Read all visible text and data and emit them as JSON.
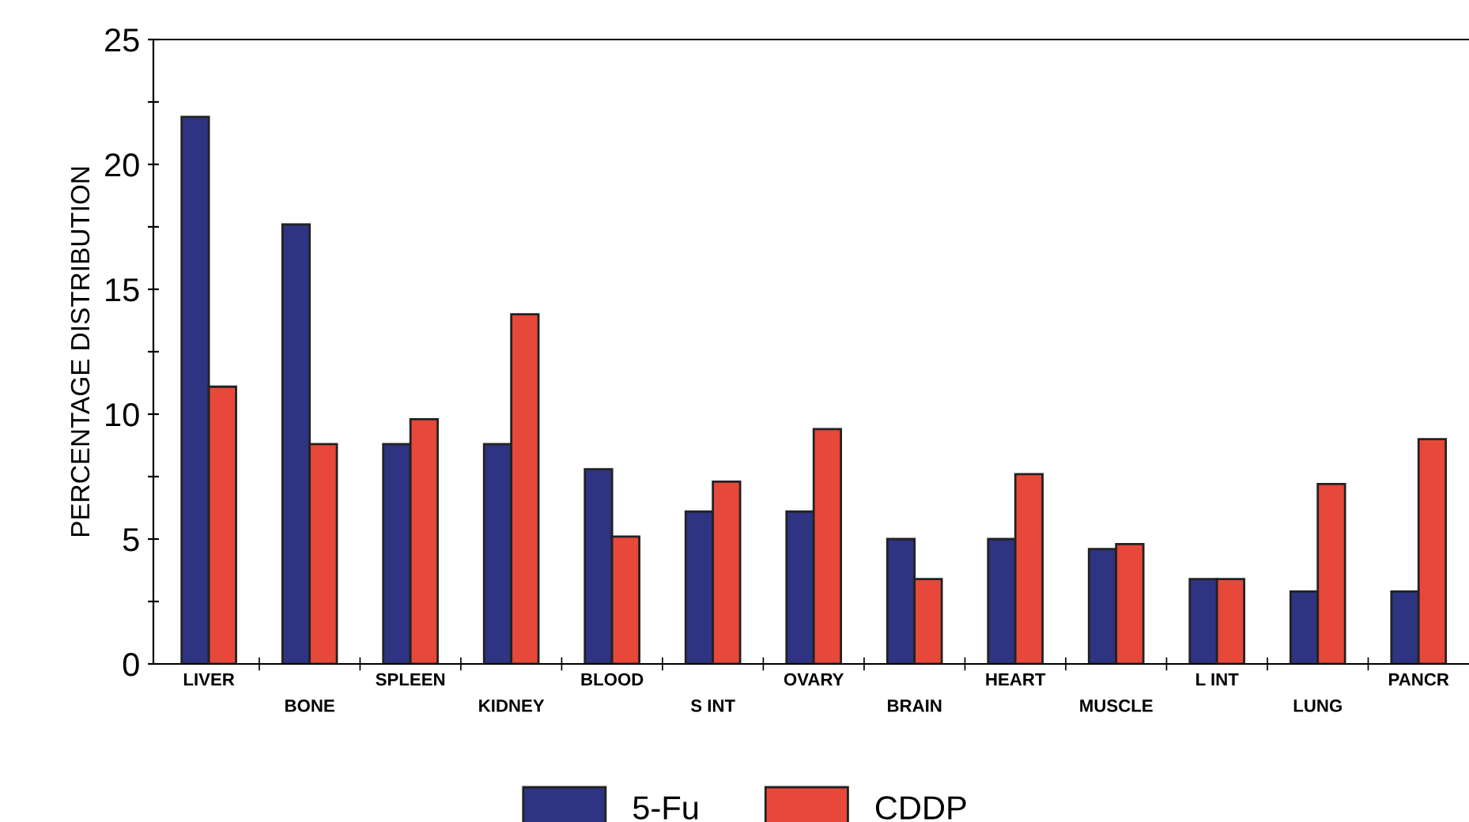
{
  "chart_data": {
    "type": "bar",
    "ylabel": "PERCENTAGE DISTRIBUTION",
    "categories": [
      "LIVER",
      "BONE",
      "SPLEEN",
      "KIDNEY",
      "BLOOD",
      "S INT",
      "OVARY",
      "BRAIN",
      "HEART",
      "MUSCLE",
      "L INT",
      "LUNG",
      "PANCR"
    ],
    "series": [
      {
        "name": "5-Fu",
        "color": "#2e3382",
        "values": [
          21.9,
          17.6,
          8.8,
          8.8,
          7.8,
          6.1,
          6.1,
          5.0,
          5.0,
          4.6,
          3.4,
          2.9,
          2.9
        ]
      },
      {
        "name": "CDDP",
        "color": "#e8483a",
        "values": [
          11.1,
          8.8,
          9.8,
          14.0,
          5.1,
          7.3,
          9.4,
          3.4,
          7.6,
          4.8,
          3.4,
          7.2,
          9.0
        ]
      }
    ],
    "ylim": [
      0,
      25
    ],
    "yticks": [
      0,
      {
        "value": 2.5,
        "label": null
      },
      5,
      {
        "value": 7.5,
        "label": null
      },
      10,
      {
        "value": 12.5,
        "label": null
      },
      15,
      {
        "value": 17.5,
        "label": null
      },
      20,
      {
        "value": 22.5,
        "label": null
      },
      25
    ],
    "grid": false,
    "legend": "bottom"
  }
}
